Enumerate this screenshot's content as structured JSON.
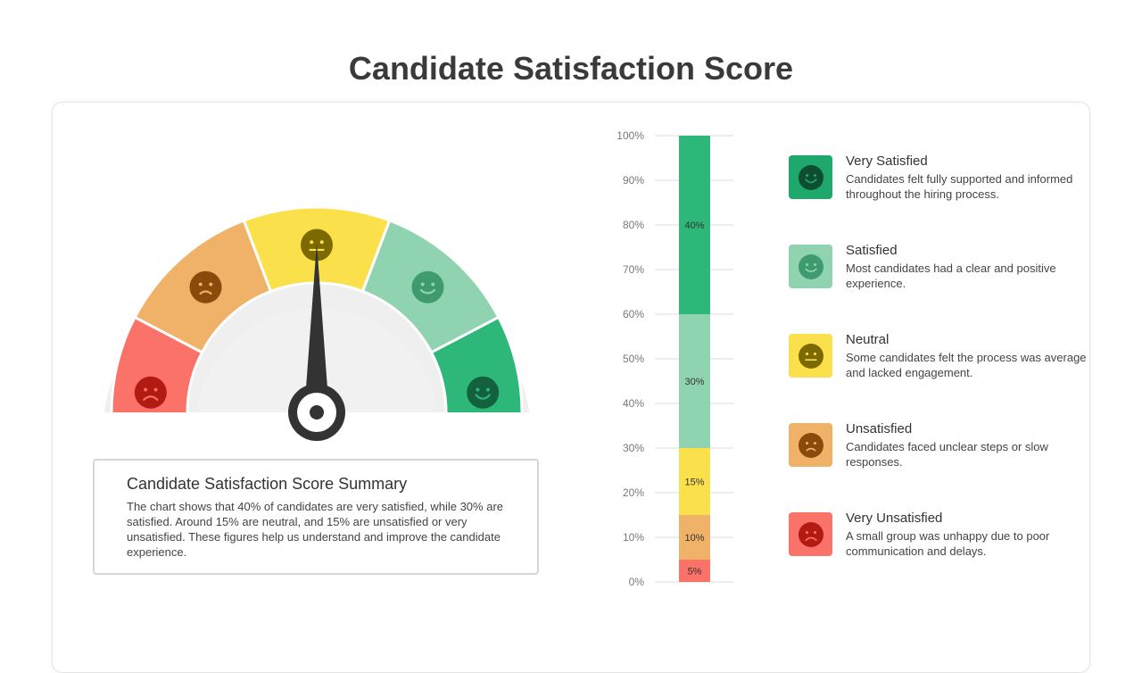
{
  "title": "Candidate Satisfaction Score",
  "summary": {
    "heading": "Candidate Satisfaction Score Summary",
    "text": "The chart shows that 40% of candidates are very satisfied, while 30% are satisfied. Around 15% are neutral, and 15% are unsatisfied or very unsatisfied. These figures help us understand and improve the candidate experience."
  },
  "gauge": {
    "segments": [
      {
        "mood": "sad",
        "color": "#FA7268",
        "face_color": "#B31A12"
      },
      {
        "mood": "frown",
        "color": "#F0B169",
        "face_color": "#8A4A0C"
      },
      {
        "mood": "neutral",
        "color": "#FAE14C",
        "face_color": "#7C6A00"
      },
      {
        "mood": "smile",
        "color": "#8FD3B0",
        "face_color": "#3E9B6D"
      },
      {
        "mood": "grin",
        "color": "#2DB87A",
        "face_color": "#13613E"
      }
    ],
    "needle_value": 0.5,
    "needle_color": "#333333"
  },
  "chart_data": {
    "type": "bar",
    "stacked": true,
    "ylim": [
      0,
      100
    ],
    "yticks": [
      "0%",
      "10%",
      "20%",
      "30%",
      "40%",
      "50%",
      "60%",
      "70%",
      "80%",
      "90%",
      "100%"
    ],
    "series": [
      {
        "value": 5,
        "label": "5%",
        "color": "#FA7268"
      },
      {
        "value": 10,
        "label": "10%",
        "color": "#F0B169"
      },
      {
        "value": 15,
        "label": "15%",
        "color": "#FAE14C"
      },
      {
        "value": 30,
        "label": "30%",
        "color": "#8FD3B0"
      },
      {
        "value": 40,
        "label": "40%",
        "color": "#2DB87A"
      }
    ],
    "grid": true
  },
  "legend": [
    {
      "title": "Very Satisfied",
      "desc": "Candidates felt fully supported and informed throughout the hiring process.",
      "color": "#1FA86C",
      "face_color": "#0E4D30",
      "mood": "grin",
      "icon": "very-satisfied-face-icon"
    },
    {
      "title": "Satisfied",
      "desc": "Most candidates had a clear and positive experience.",
      "color": "#8FD3B0",
      "face_color": "#3E9B6D",
      "mood": "smile",
      "icon": "satisfied-face-icon"
    },
    {
      "title": "Neutral",
      "desc": "Some candidates felt the process was average and lacked engagement.",
      "color": "#FAE14C",
      "face_color": "#7C6A00",
      "mood": "neutral",
      "icon": "neutral-face-icon"
    },
    {
      "title": "Unsatisfied",
      "desc": "Candidates faced unclear steps or slow responses.",
      "color": "#F0B169",
      "face_color": "#8A4A0C",
      "mood": "frown",
      "icon": "unsatisfied-face-icon"
    },
    {
      "title": "Very Unsatisfied",
      "desc": "A small group was unhappy due to poor communication and delays.",
      "color": "#FA7268",
      "face_color": "#B31A12",
      "mood": "sad",
      "icon": "very-unsatisfied-face-icon"
    }
  ]
}
